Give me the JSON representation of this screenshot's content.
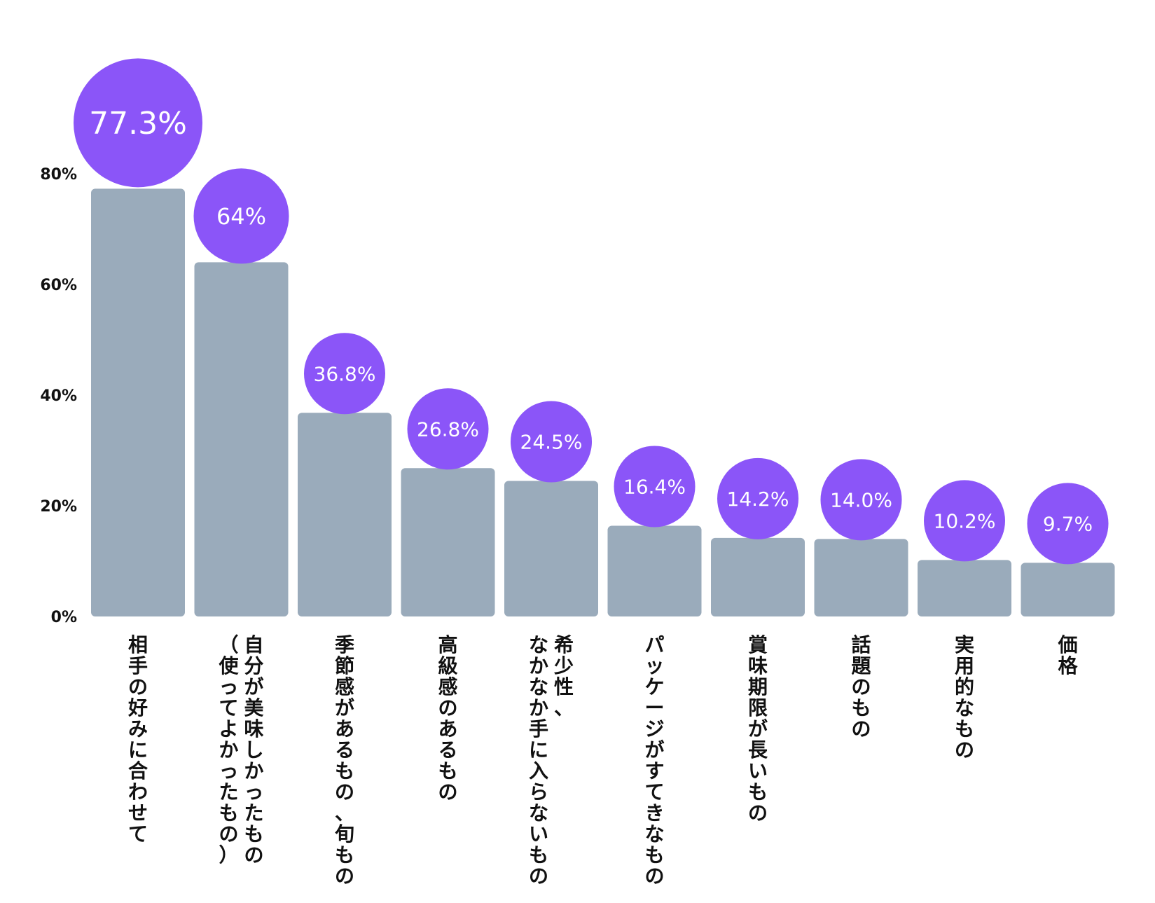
{
  "chart_data": {
    "type": "bar",
    "categories": [
      "相手の好みに合わせて",
      "自分が美味しかったもの\n（使ってよかったもの）",
      "季節感があるもの、旬もの",
      "高級感のあるもの",
      "希少性、\nなかなか手に入らないもの",
      "パッケージがすてきなもの",
      "賞味期限が長いもの",
      "話題のもの",
      "実用的なもの",
      "価格"
    ],
    "values": [
      77.3,
      64,
      36.8,
      26.8,
      24.5,
      16.4,
      14.2,
      14.0,
      10.2,
      9.7
    ],
    "data_labels": [
      "77.3%",
      "64%",
      "36.8%",
      "26.8%",
      "24.5%",
      "16.4%",
      "14.2%",
      "14.0%",
      "10.2%",
      "9.7%"
    ],
    "yticks": [
      "0%",
      "20%",
      "40%",
      "60%",
      "80%"
    ],
    "ylim": [
      0,
      80
    ],
    "title": "",
    "xlabel": "",
    "ylabel": "",
    "grid": false,
    "legend": "none",
    "colors": {
      "bar": "#9aabbb",
      "bubble": "#8b55f8",
      "bubble_text": "#ffffff",
      "tick_text": "#111111",
      "label_text": "#111111"
    }
  }
}
